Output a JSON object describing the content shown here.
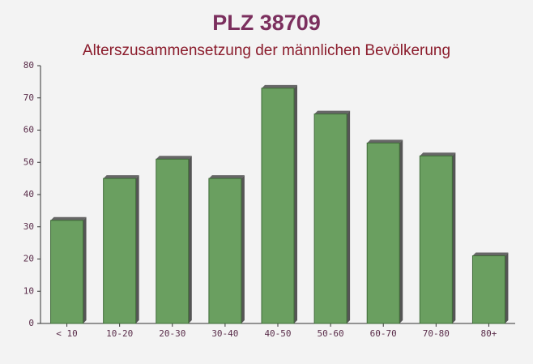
{
  "chart_data": {
    "type": "bar",
    "title": "PLZ 38709",
    "subtitle": "Alterszusammensetzung der männlichen Bevölkerung",
    "categories": [
      "< 10",
      "10-20",
      "20-30",
      "30-40",
      "40-50",
      "50-60",
      "60-70",
      "70-80",
      "80+"
    ],
    "values": [
      32,
      45,
      51,
      45,
      73,
      65,
      56,
      52,
      21
    ],
    "color": "#6a9f60",
    "ylim": [
      0,
      80
    ],
    "yticks": [
      0,
      10,
      20,
      30,
      40,
      50,
      60,
      70,
      80
    ],
    "grid": false
  }
}
